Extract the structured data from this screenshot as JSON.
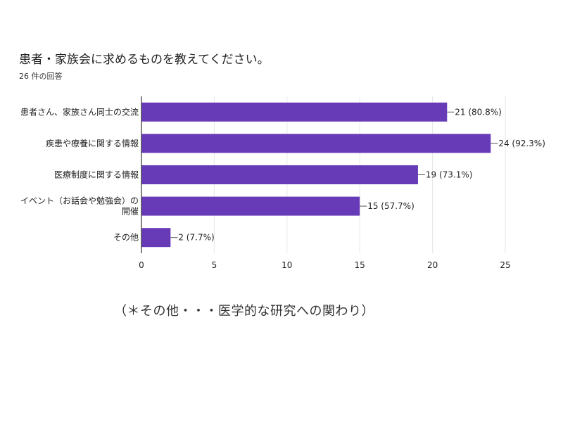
{
  "header": {
    "title": "患者・家族会に求めるものを教えてください。",
    "subtitle": "26 件の回答"
  },
  "footnote": "（＊その他・・・医学的な研究への関わり）",
  "colors": {
    "bar": "#673ab7",
    "axis": "#333333",
    "grid": "#e6e6e6"
  },
  "chart_data": {
    "type": "bar",
    "orientation": "horizontal",
    "title": "患者・家族会に求めるものを教えてください。",
    "subtitle": "26 件の回答",
    "categories": [
      [
        "患者さん、家族さん同士の交流"
      ],
      [
        "疾患や療養に関する情報"
      ],
      [
        "医療制度に関する情報"
      ],
      [
        "イベント（お話会や勉強会）の",
        "開催"
      ],
      [
        "その他"
      ]
    ],
    "values": [
      21,
      24,
      19,
      15,
      2
    ],
    "labels": [
      "21 (80.8%)",
      "24 (92.3%)",
      "19 (73.1%)",
      "15 (57.7%)",
      "2 (7.7%)"
    ],
    "xlim": [
      0,
      25
    ],
    "xticks": [
      0,
      5,
      10,
      15,
      20,
      25
    ],
    "grid": true
  }
}
